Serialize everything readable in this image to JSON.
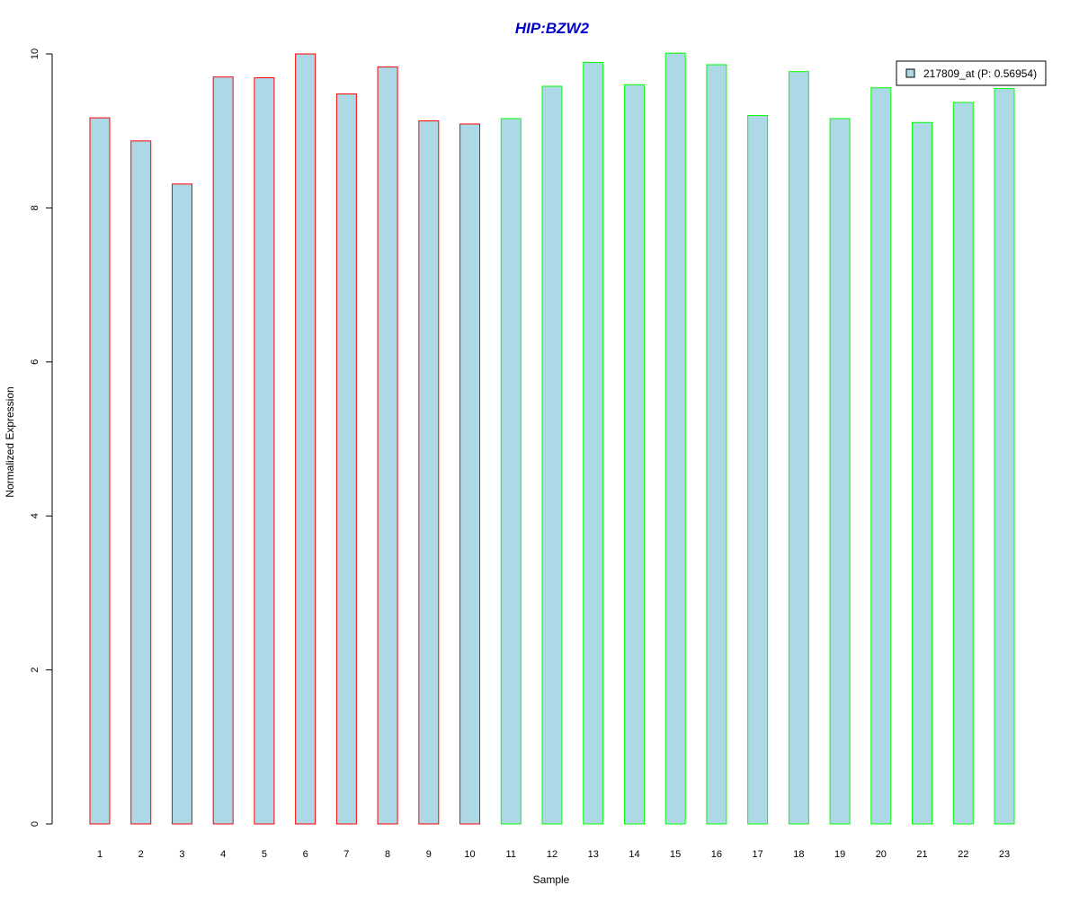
{
  "chart_data": {
    "type": "bar",
    "title": "HIP:BZW2",
    "title_color": "#0000CC",
    "xlabel": "Sample",
    "ylabel": "Normalized Expression",
    "ylim": [
      0,
      10
    ],
    "yticks": [
      0,
      2,
      4,
      6,
      8,
      10
    ],
    "grid": false,
    "categories": [
      "1",
      "2",
      "3",
      "4",
      "5",
      "6",
      "7",
      "8",
      "9",
      "10",
      "11",
      "12",
      "13",
      "14",
      "15",
      "16",
      "17",
      "18",
      "19",
      "20",
      "21",
      "22",
      "23"
    ],
    "series": [
      {
        "name": "217809_at (P: 0.56954)",
        "fill_color": "#ADD8E6",
        "values": [
          9.17,
          8.87,
          8.31,
          9.7,
          9.69,
          10.0,
          9.48,
          9.83,
          9.13,
          9.09,
          9.16,
          9.58,
          9.89,
          9.6,
          10.01,
          9.86,
          9.2,
          9.77,
          9.16,
          9.56,
          9.11,
          9.37,
          9.55
        ]
      }
    ],
    "bar_border_colors": [
      "#FF0000",
      "#FF0000",
      "#FF0000",
      "#FF0000",
      "#FF0000",
      "#FF0000",
      "#FF0000",
      "#FF0000",
      "#FF0000",
      "#FF0000",
      "#00FF00",
      "#00FF00",
      "#00FF00",
      "#00FF00",
      "#00FF00",
      "#00FF00",
      "#00FF00",
      "#00FF00",
      "#00FF00",
      "#00FF00",
      "#00FF00",
      "#00FF00",
      "#00FF00"
    ],
    "legend": {
      "placement": "top-right",
      "label": "217809_at (P: 0.56954)"
    }
  }
}
